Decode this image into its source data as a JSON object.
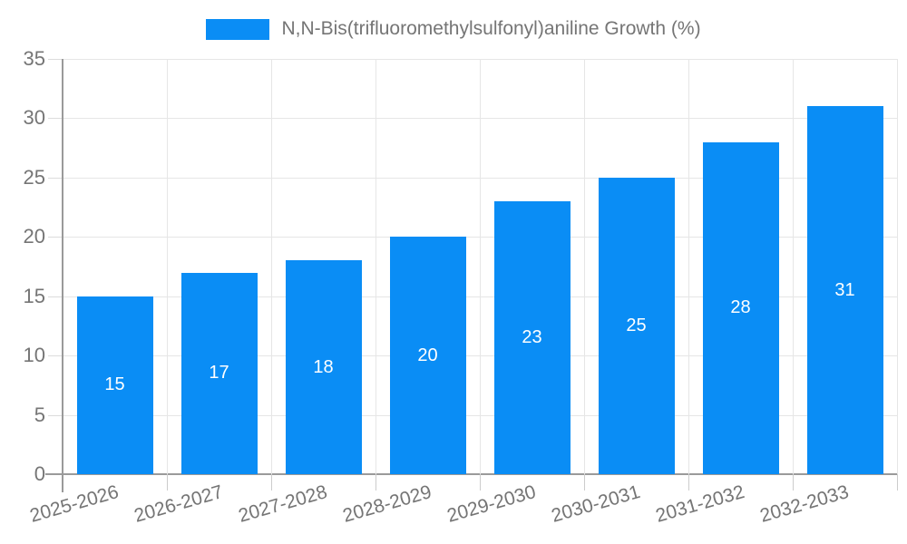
{
  "legend": {
    "label": "N,N-Bis(trifluoromethylsulfonyl)aniline Growth (%)"
  },
  "chart_data": {
    "type": "bar",
    "title": "",
    "categories": [
      "2025-2026",
      "2026-2027",
      "2027-2028",
      "2028-2029",
      "2029-2030",
      "2030-2031",
      "2031-2032",
      "2032-2033"
    ],
    "series": [
      {
        "name": "N,N-Bis(trifluoromethylsulfonyl)aniline Growth (%)",
        "values": [
          15,
          17,
          18,
          20,
          23,
          25,
          28,
          31
        ]
      }
    ],
    "bar_labels": [
      15,
      17,
      18,
      20,
      23,
      25,
      28,
      31
    ],
    "xlabel": "",
    "ylabel": "",
    "ylim": [
      0,
      35
    ],
    "yticks": [
      0,
      5,
      10,
      15,
      20,
      25,
      30,
      35
    ],
    "grid": true,
    "legend_position": "top",
    "colors": {
      "bar": "#0a8df5",
      "grid": "#e6e6e6",
      "axis": "#9a9a9a",
      "tick_text": "#757575",
      "bar_label": "#ffffff",
      "background": "#ffffff"
    }
  }
}
